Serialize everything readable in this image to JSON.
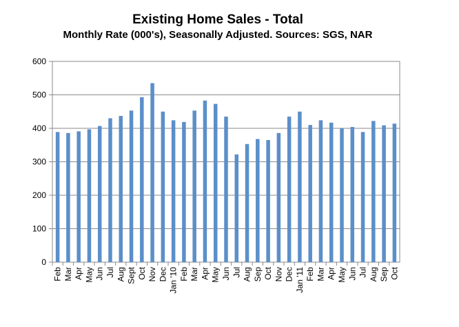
{
  "chart_data": {
    "type": "bar",
    "title": "Existing Home Sales - Total",
    "subtitle": "Monthly Rate (000's), Seasonally Adjusted.  Sources: SGS, NAR",
    "xlabel": "",
    "ylabel": "",
    "ylim": [
      0,
      600
    ],
    "yticks": [
      0,
      100,
      200,
      300,
      400,
      500,
      600
    ],
    "grid": true,
    "legend": "none",
    "bar_color": "#5b8fc9",
    "categories": [
      "Feb",
      "Mar",
      "Apr",
      "May",
      "Jun",
      "Jul",
      "Aug",
      "Sept",
      "Oct",
      "Nov",
      "Dec",
      "Jan '10",
      "Feb",
      "Mar",
      "Apr",
      "May",
      "Jun",
      "Jul",
      "Aug",
      "Sep",
      "Oct",
      "Nov",
      "Dec",
      "Jan '11",
      "Feb",
      "Mar",
      "Apr",
      "May",
      "Jun",
      "Jul",
      "Aug",
      "Sep",
      "Oct"
    ],
    "values": [
      389,
      386,
      391,
      397,
      407,
      430,
      437,
      453,
      493,
      535,
      450,
      424,
      419,
      453,
      483,
      473,
      435,
      322,
      353,
      368,
      365,
      386,
      435,
      450,
      410,
      424,
      417,
      400,
      404,
      389,
      422,
      409,
      414
    ]
  }
}
